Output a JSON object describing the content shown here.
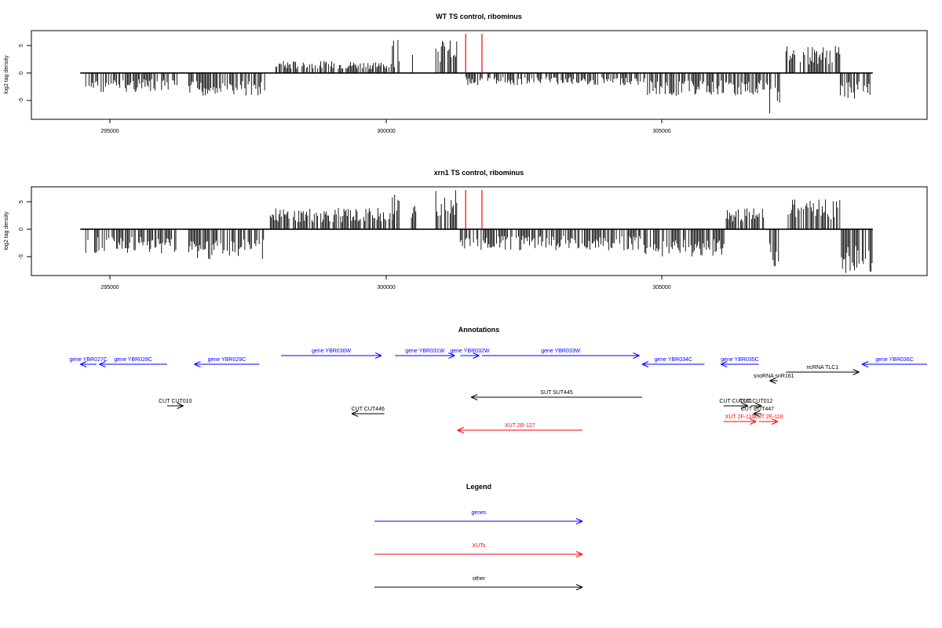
{
  "panels": [
    {
      "title": "WT TS control, ribominus",
      "ylabel": "log2 tag density",
      "yticks": [
        "-5",
        "0",
        "5"
      ],
      "xticks": [
        "295000",
        "300000",
        "305000"
      ],
      "red_markers": [
        301500,
        301800
      ],
      "segments": [
        {
          "from": 294500,
          "to": 296200,
          "level": -3.2
        },
        {
          "from": 296400,
          "to": 297800,
          "level": -4.0
        },
        {
          "from": 298000,
          "to": 300200,
          "level": 2.0
        },
        {
          "from": 300150,
          "to": 300300,
          "level": 6.0
        },
        {
          "from": 300500,
          "to": 300600,
          "level": 3.0
        },
        {
          "from": 300950,
          "to": 301350,
          "level": 5.5
        },
        {
          "from": 301500,
          "to": 304800,
          "level": -2.0
        },
        {
          "from": 304850,
          "to": 307100,
          "level": -3.8
        },
        {
          "from": 307100,
          "to": 307300,
          "level": -6.8
        },
        {
          "from": 307400,
          "to": 308400,
          "level": 4.5
        },
        {
          "from": 308400,
          "to": 309000,
          "level": -4.5
        }
      ]
    },
    {
      "title": "xrn1 TS control, ribominus",
      "ylabel": "log2 tag density",
      "yticks": [
        "-5",
        "0",
        "5"
      ],
      "xticks": [
        "295000",
        "300000",
        "305000"
      ],
      "red_markers": [
        301500,
        301800
      ],
      "segments": [
        {
          "from": 294500,
          "to": 296200,
          "level": -4.0
        },
        {
          "from": 296400,
          "to": 297800,
          "level": -5.0
        },
        {
          "from": 297900,
          "to": 300200,
          "level": 3.5
        },
        {
          "from": 300150,
          "to": 300300,
          "level": 6.0
        },
        {
          "from": 300500,
          "to": 300600,
          "level": 4.0
        },
        {
          "from": 300950,
          "to": 301350,
          "level": 6.5
        },
        {
          "from": 301400,
          "to": 304800,
          "level": -3.5
        },
        {
          "from": 304800,
          "to": 306300,
          "level": -4.5
        },
        {
          "from": 306300,
          "to": 307000,
          "level": 3.5
        },
        {
          "from": 307100,
          "to": 307300,
          "level": -7.5
        },
        {
          "from": 307400,
          "to": 308400,
          "level": 5.0
        },
        {
          "from": 308400,
          "to": 309000,
          "level": -7.5
        }
      ]
    }
  ],
  "chart_data": [
    {
      "type": "bar",
      "title": "WT TS control, ribominus",
      "xlabel": "",
      "ylabel": "log2 tag density",
      "xlim": [
        293500,
        310000
      ],
      "ylim": [
        -8,
        8
      ],
      "grid": false,
      "x_ticks": [
        295000,
        300000,
        305000
      ],
      "y_ticks": [
        -5,
        0,
        5
      ],
      "region_summary": [
        {
          "from": 294500,
          "to": 296200,
          "approx_value": -3.2
        },
        {
          "from": 296400,
          "to": 297800,
          "approx_value": -4.0
        },
        {
          "from": 298000,
          "to": 300200,
          "approx_value": 2.0
        },
        {
          "from": 300150,
          "to": 300300,
          "approx_value": 6.0
        },
        {
          "from": 300950,
          "to": 301350,
          "approx_value": 5.5
        },
        {
          "from": 301500,
          "to": 304800,
          "approx_value": -2.0
        },
        {
          "from": 304850,
          "to": 307100,
          "approx_value": -3.8
        },
        {
          "from": 307100,
          "to": 307300,
          "approx_value": -6.8
        },
        {
          "from": 307400,
          "to": 308400,
          "approx_value": 4.5
        },
        {
          "from": 308400,
          "to": 309000,
          "approx_value": -4.5
        }
      ]
    },
    {
      "type": "bar",
      "title": "xrn1 TS control, ribominus",
      "xlabel": "",
      "ylabel": "log2 tag density",
      "xlim": [
        293500,
        310000
      ],
      "ylim": [
        -8,
        8
      ],
      "grid": false,
      "x_ticks": [
        295000,
        300000,
        305000
      ],
      "y_ticks": [
        -5,
        0,
        5
      ],
      "region_summary": [
        {
          "from": 294500,
          "to": 296200,
          "approx_value": -4.0
        },
        {
          "from": 296400,
          "to": 297800,
          "approx_value": -5.0
        },
        {
          "from": 297900,
          "to": 300200,
          "approx_value": 3.5
        },
        {
          "from": 300150,
          "to": 300300,
          "approx_value": 6.0
        },
        {
          "from": 300950,
          "to": 301350,
          "approx_value": 6.5
        },
        {
          "from": 301400,
          "to": 304800,
          "approx_value": -3.5
        },
        {
          "from": 304800,
          "to": 306300,
          "approx_value": -4.5
        },
        {
          "from": 306300,
          "to": 307000,
          "approx_value": 3.5
        },
        {
          "from": 307100,
          "to": 307300,
          "approx_value": -7.5
        },
        {
          "from": 307400,
          "to": 308400,
          "approx_value": 5.0
        },
        {
          "from": 308400,
          "to": 309000,
          "approx_value": -7.5
        }
      ]
    }
  ],
  "annotations": {
    "title": "Annotations",
    "colors": {
      "gene": "#0000ff",
      "xut": "#ff0000",
      "other": "#000000"
    },
    "items": [
      {
        "label": "gene YBR027C",
        "start": 294400,
        "end": 294700,
        "strand": "-",
        "kind": "gene",
        "row": 0
      },
      {
        "label": "gene YBR028C",
        "start": 294750,
        "end": 296000,
        "strand": "-",
        "kind": "gene",
        "row": 0
      },
      {
        "label": "gene YBR029C",
        "start": 296500,
        "end": 297700,
        "strand": "-",
        "kind": "gene",
        "row": 0
      },
      {
        "label": "gene YBR030W",
        "start": 298100,
        "end": 299950,
        "strand": "+",
        "kind": "gene",
        "row": 1
      },
      {
        "label": "gene YBR031W",
        "start": 300200,
        "end": 301300,
        "strand": "+",
        "kind": "gene",
        "row": 1
      },
      {
        "label": "gene YBR032W",
        "start": 301400,
        "end": 301750,
        "strand": "+",
        "kind": "gene",
        "row": 1
      },
      {
        "label": "gene YBR033W",
        "start": 301800,
        "end": 304700,
        "strand": "+",
        "kind": "gene",
        "row": 1
      },
      {
        "label": "gene YBR034C",
        "start": 304750,
        "end": 305900,
        "strand": "-",
        "kind": "gene",
        "row": 0
      },
      {
        "label": "gene YBR035C",
        "start": 306200,
        "end": 306900,
        "strand": "-",
        "kind": "gene",
        "row": 0
      },
      {
        "label": "gene YBR036C",
        "start": 308800,
        "end": 310000,
        "strand": "-",
        "kind": "gene",
        "row": 0
      },
      {
        "label": "snoRNA snR161",
        "start": 307100,
        "end": 307250,
        "strand": "-",
        "kind": "other",
        "row": 2
      },
      {
        "label": "ncRNA TLC1",
        "start": 307400,
        "end": 308750,
        "strand": "+",
        "kind": "other",
        "row": 3
      },
      {
        "label": "SUT SUT445",
        "start": 301600,
        "end": 304750,
        "strand": "-",
        "kind": "other",
        "row": 4
      },
      {
        "label": "CUT CUT010",
        "start": 296000,
        "end": 296300,
        "strand": "+",
        "kind": "other",
        "row": 5
      },
      {
        "label": "CUT CUT446",
        "start": 299400,
        "end": 300000,
        "strand": "-",
        "kind": "other",
        "row": 6
      },
      {
        "label": "CUT CUT011",
        "start": 306250,
        "end": 306700,
        "strand": "+",
        "kind": "other",
        "row": 5
      },
      {
        "label": "CUT CUT012",
        "start": 306750,
        "end": 306950,
        "strand": "+",
        "kind": "other",
        "row": 5
      },
      {
        "label": "CUT CUT447",
        "start": 306800,
        "end": 306950,
        "strand": "-",
        "kind": "other",
        "row": 6
      },
      {
        "label": "XUT 2F-116",
        "start": 306250,
        "end": 306850,
        "strand": "+",
        "kind": "xut",
        "row": 7
      },
      {
        "label": "XUT 2F-118",
        "start": 306900,
        "end": 307250,
        "strand": "+",
        "kind": "xut",
        "row": 7
      },
      {
        "label": "XUT 2R-127",
        "start": 301350,
        "end": 303650,
        "strand": "-",
        "kind": "xut",
        "row": 8
      }
    ]
  },
  "legend": {
    "title": "Legend",
    "entries": [
      {
        "label": "genes",
        "color": "#0000ff"
      },
      {
        "label": "XUTs",
        "color": "#ff0000"
      },
      {
        "label": "other",
        "color": "#000000"
      }
    ]
  }
}
